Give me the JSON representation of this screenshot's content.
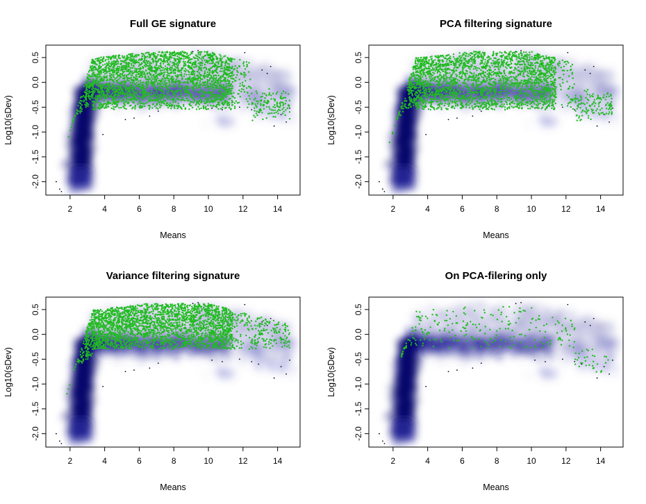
{
  "figure": {
    "panels_layout": "2x2",
    "background": "#ffffff"
  },
  "chart_data": [
    {
      "type": "scatter",
      "title": "Full GE signature",
      "xlabel": "Means",
      "ylabel": "Log10(sDev)",
      "xlim": [
        0.6,
        15.3
      ],
      "ylim": [
        -2.27,
        0.75
      ],
      "xticks": [
        "2",
        "4",
        "6",
        "8",
        "10",
        "12",
        "14"
      ],
      "yticks": [
        "-2.0",
        "-1.5",
        "-1.0",
        "-0.5",
        "0.0",
        "0.5"
      ],
      "background_layer": "smoothScatter density of all genes (white to navy)",
      "highlight_color": "#22bb22",
      "highlight_set": "full",
      "highlight_count_approx": 3000
    },
    {
      "type": "scatter",
      "title": "PCA filtering signature",
      "xlabel": "Means",
      "ylabel": "Log10(sDev)",
      "xlim": [
        0.6,
        15.3
      ],
      "ylim": [
        -2.27,
        0.75
      ],
      "xticks": [
        "2",
        "4",
        "6",
        "8",
        "10",
        "12",
        "14"
      ],
      "yticks": [
        "-2.0",
        "-1.5",
        "-1.0",
        "-0.5",
        "0.0",
        "0.5"
      ],
      "background_layer": "smoothScatter density of all genes (white to navy)",
      "highlight_color": "#22bb22",
      "highlight_set": "pca",
      "highlight_count_approx": 2800
    },
    {
      "type": "scatter",
      "title": "Variance filtering signature",
      "xlabel": "Means",
      "ylabel": "Log10(sDev)",
      "xlim": [
        0.6,
        15.3
      ],
      "ylim": [
        -2.27,
        0.75
      ],
      "xticks": [
        "2",
        "4",
        "6",
        "8",
        "10",
        "12",
        "14"
      ],
      "yticks": [
        "-2.0",
        "-1.5",
        "-1.0",
        "-0.5",
        "0.0",
        "0.5"
      ],
      "background_layer": "smoothScatter density of all genes (white to navy)",
      "highlight_color": "#22bb22",
      "highlight_set": "variance",
      "highlight_count_approx": 2900
    },
    {
      "type": "scatter",
      "title": "On PCA-filering only",
      "xlabel": "Means",
      "ylabel": "Log10(sDev)",
      "xlim": [
        0.6,
        15.3
      ],
      "ylim": [
        -2.27,
        0.75
      ],
      "xticks": [
        "2",
        "4",
        "6",
        "8",
        "10",
        "12",
        "14"
      ],
      "yticks": [
        "-2.0",
        "-1.5",
        "-1.0",
        "-0.5",
        "0.0",
        "0.5"
      ],
      "background_layer": "smoothScatter density of all genes (white to navy)",
      "highlight_color": "#22bb22",
      "highlight_set": "pca_only",
      "highlight_count_approx": 280
    }
  ]
}
